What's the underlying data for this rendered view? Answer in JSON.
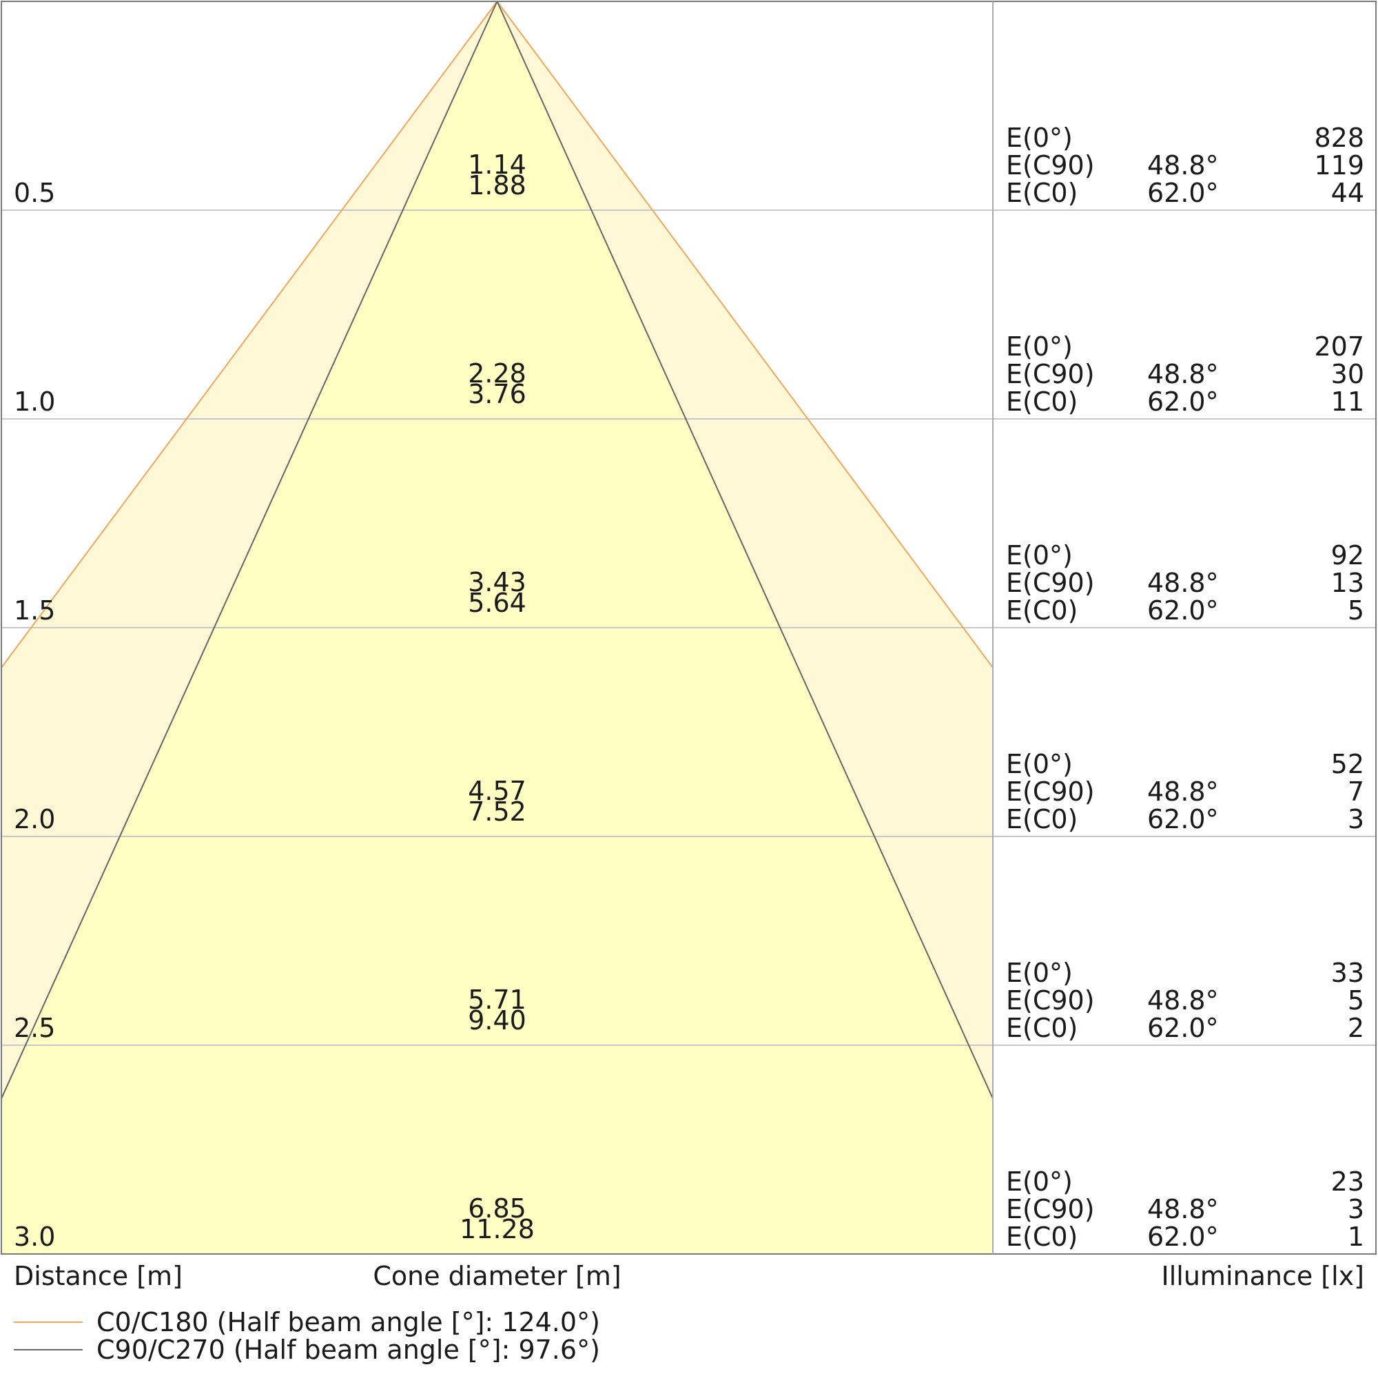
{
  "chart_data": {
    "type": "area",
    "title": "",
    "xlabel": "Cone diameter [m]",
    "ylabel": "Distance [m]",
    "illuminance_label": "Illuminance [lx]",
    "distances": [
      "0.5",
      "1.0",
      "1.5",
      "2.0",
      "2.5",
      "3.0"
    ],
    "distance_values": [
      0.5,
      1.0,
      1.5,
      2.0,
      2.5,
      3.0
    ],
    "series": [
      {
        "name": "C0/C180 (Half beam angle [°]: 124.0°)",
        "color": "#f5a55a",
        "fill": "#fff8d6",
        "half_beam_angle": 124.0,
        "diameters": [
          "1.88",
          "3.76",
          "5.64",
          "7.52",
          "9.40",
          "11.28"
        ],
        "diameter_values": [
          1.88,
          3.76,
          5.64,
          7.52,
          9.4,
          11.28
        ]
      },
      {
        "name": "C90/C270 (Half beam angle [°]: 97.6°)",
        "color": "#666666",
        "fill": "#ffffc4",
        "half_beam_angle": 97.6,
        "diameters": [
          "1.14",
          "2.28",
          "3.43",
          "4.57",
          "5.71",
          "6.85"
        ],
        "diameter_values": [
          1.14,
          2.28,
          3.43,
          4.57,
          5.71,
          6.85
        ]
      }
    ],
    "illuminance": [
      {
        "distance": "0.5",
        "rows": [
          {
            "label": "E(0°)",
            "angle": "",
            "value": "828"
          },
          {
            "label": "E(C90)",
            "angle": "48.8°",
            "value": "119"
          },
          {
            "label": "E(C0)",
            "angle": "62.0°",
            "value": "44"
          }
        ]
      },
      {
        "distance": "1.0",
        "rows": [
          {
            "label": "E(0°)",
            "angle": "",
            "value": "207"
          },
          {
            "label": "E(C90)",
            "angle": "48.8°",
            "value": "30"
          },
          {
            "label": "E(C0)",
            "angle": "62.0°",
            "value": "11"
          }
        ]
      },
      {
        "distance": "1.5",
        "rows": [
          {
            "label": "E(0°)",
            "angle": "",
            "value": "92"
          },
          {
            "label": "E(C90)",
            "angle": "48.8°",
            "value": "13"
          },
          {
            "label": "E(C0)",
            "angle": "62.0°",
            "value": "5"
          }
        ]
      },
      {
        "distance": "2.0",
        "rows": [
          {
            "label": "E(0°)",
            "angle": "",
            "value": "52"
          },
          {
            "label": "E(C90)",
            "angle": "48.8°",
            "value": "7"
          },
          {
            "label": "E(C0)",
            "angle": "62.0°",
            "value": "3"
          }
        ]
      },
      {
        "distance": "2.5",
        "rows": [
          {
            "label": "E(0°)",
            "angle": "",
            "value": "33"
          },
          {
            "label": "E(C90)",
            "angle": "48.8°",
            "value": "5"
          },
          {
            "label": "E(C0)",
            "angle": "62.0°",
            "value": "2"
          }
        ]
      },
      {
        "distance": "3.0",
        "rows": [
          {
            "label": "E(0°)",
            "angle": "",
            "value": "23"
          },
          {
            "label": "E(C90)",
            "angle": "48.8°",
            "value": "3"
          },
          {
            "label": "E(C0)",
            "angle": "62.0°",
            "value": "1"
          }
        ]
      }
    ],
    "ylim": [
      0,
      3.0
    ],
    "grid": true,
    "legend_position": "bottom-left"
  }
}
